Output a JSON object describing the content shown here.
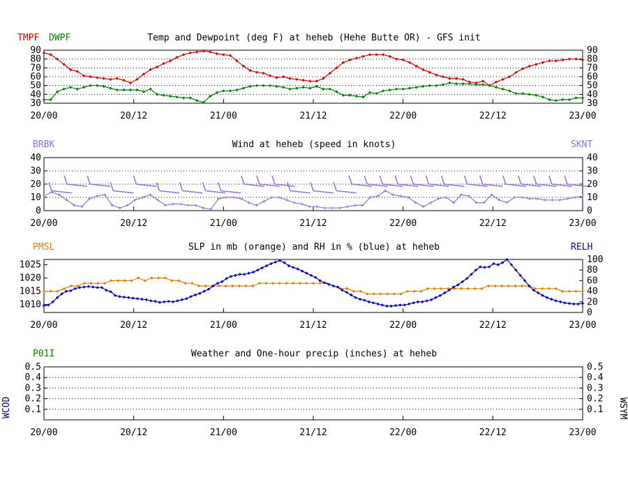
{
  "x_ticks": [
    "20/00",
    "20/12",
    "21/00",
    "21/12",
    "22/00",
    "22/12",
    "23/00"
  ],
  "colors": {
    "temp": "#e00000",
    "dew": "#008000",
    "wind": "#9370db",
    "pmsl": "#e08000",
    "relh": "#0000c8",
    "precip": "#008000",
    "wcod": "#000080"
  },
  "chart_data": [
    {
      "type": "line",
      "title": "Temp and Dewpoint (deg F) at heheb (Hehe Butte OR) - GFS init",
      "label_left_1": "TMPF",
      "label_left_2": "DWPF",
      "y_ticks": [
        "30",
        "40",
        "50",
        "60",
        "70",
        "80",
        "90"
      ],
      "ylim": [
        30,
        90
      ],
      "grid": true,
      "series": [
        {
          "name": "TMPF",
          "values": [
            87,
            85,
            80,
            74,
            68,
            66,
            61,
            60,
            59,
            58,
            57,
            58,
            56,
            53,
            57,
            63,
            68,
            71,
            75,
            78,
            82,
            85,
            87,
            88,
            89,
            88,
            86,
            85,
            84,
            78,
            72,
            67,
            65,
            64,
            61,
            59,
            60,
            58,
            57,
            56,
            55,
            55,
            58,
            64,
            70,
            76,
            79,
            81,
            83,
            85,
            85,
            85,
            83,
            80,
            79,
            76,
            72,
            68,
            65,
            62,
            60,
            58,
            58,
            57,
            54,
            53,
            55,
            50,
            54,
            57,
            60,
            65,
            69,
            72,
            74,
            76,
            78,
            78,
            79,
            80,
            80,
            79
          ]
        },
        {
          "name": "DWPF",
          "values": [
            34,
            34,
            43,
            46,
            48,
            46,
            48,
            50,
            50,
            49,
            47,
            45,
            45,
            45,
            45,
            43,
            46,
            40,
            39,
            38,
            37,
            36,
            36,
            33,
            31,
            38,
            42,
            44,
            44,
            45,
            47,
            49,
            50,
            50,
            50,
            49,
            48,
            46,
            47,
            48,
            47,
            49,
            46,
            46,
            43,
            39,
            39,
            38,
            37,
            42,
            41,
            44,
            45,
            46,
            46,
            47,
            48,
            49,
            50,
            50,
            51,
            53,
            52,
            52,
            52,
            51,
            51,
            50,
            48,
            46,
            44,
            41,
            41,
            40,
            39,
            37,
            34,
            33,
            34,
            34,
            36,
            36
          ]
        }
      ]
    },
    {
      "type": "line",
      "title": "Wind at  heheb (speed in knots)",
      "label_left": "BRBK",
      "label_right": "SKNT",
      "y_ticks": [
        "0",
        "10",
        "20",
        "30",
        "40"
      ],
      "ylim": [
        0,
        40
      ],
      "grid": true,
      "series": [
        {
          "name": "SKNT",
          "values": [
            11,
            14,
            12,
            8,
            4,
            3,
            9,
            11,
            12,
            4,
            2,
            4,
            8,
            10,
            12,
            8,
            4,
            5,
            5,
            4,
            4,
            2,
            1,
            9,
            10,
            10,
            9,
            6,
            4,
            7,
            10,
            10,
            8,
            6,
            5,
            3,
            3,
            2,
            2,
            2,
            3,
            4,
            4,
            10,
            11,
            15,
            12,
            11,
            10,
            6,
            3,
            6,
            9,
            10,
            6,
            12,
            11,
            6,
            6,
            12,
            8,
            6,
            10,
            10,
            9,
            9,
            8,
            8,
            8,
            9,
            10,
            11
          ]
        }
      ],
      "barbs": [
        {
          "x": 0.5,
          "s": 15
        },
        {
          "x": 1.5,
          "s": 20
        },
        {
          "x": 3,
          "s": 20
        },
        {
          "x": 4.5,
          "s": 15
        },
        {
          "x": 6,
          "s": 20
        },
        {
          "x": 7.5,
          "s": 15
        },
        {
          "x": 9,
          "s": 15
        },
        {
          "x": 10.5,
          "s": 15
        },
        {
          "x": 11.5,
          "s": 15
        },
        {
          "x": 13,
          "s": 20
        },
        {
          "x": 14,
          "s": 20
        },
        {
          "x": 15,
          "s": 20
        },
        {
          "x": 16,
          "s": 15
        },
        {
          "x": 17.5,
          "s": 15
        },
        {
          "x": 19,
          "s": 15
        },
        {
          "x": 20,
          "s": 20
        },
        {
          "x": 21,
          "s": 20
        },
        {
          "x": 22,
          "s": 20
        },
        {
          "x": 23,
          "s": 20
        },
        {
          "x": 24,
          "s": 20
        },
        {
          "x": 25,
          "s": 20
        },
        {
          "x": 26,
          "s": 20
        },
        {
          "x": 27.5,
          "s": 20
        },
        {
          "x": 28.5,
          "s": 20
        },
        {
          "x": 30,
          "s": 20
        },
        {
          "x": 31,
          "s": 20
        },
        {
          "x": 32,
          "s": 20
        },
        {
          "x": 33,
          "s": 20
        },
        {
          "x": 34,
          "s": 20
        }
      ]
    },
    {
      "type": "line",
      "title": "SLP in mb (orange) and RH in % (blue) at  heheb",
      "label_left": "PMSL",
      "label_right": "RELH",
      "y_ticks_left": [
        "1010",
        "1015",
        "1020",
        "1025"
      ],
      "ylim_left": [
        1007,
        1027
      ],
      "y_ticks_right": [
        "0",
        "20",
        "40",
        "60",
        "80",
        "100"
      ],
      "ylim_right": [
        0,
        100
      ],
      "series": [
        {
          "name": "PMSL",
          "axis": "left",
          "values": [
            1015,
            1015,
            1015,
            1016,
            1017,
            1017,
            1018,
            1018,
            1018,
            1018,
            1019,
            1019,
            1019,
            1019,
            1020,
            1019,
            1020,
            1020,
            1020,
            1019,
            1019,
            1018,
            1018,
            1017,
            1017,
            1017,
            1017,
            1017,
            1017,
            1017,
            1017,
            1017,
            1018,
            1018,
            1018,
            1018,
            1018,
            1018,
            1018,
            1018,
            1018,
            1018,
            1018,
            1017,
            1016,
            1016,
            1015,
            1015,
            1014,
            1014,
            1014,
            1014,
            1014,
            1014,
            1015,
            1015,
            1015,
            1016,
            1016,
            1016,
            1016,
            1016,
            1016,
            1016,
            1016,
            1016,
            1017,
            1017,
            1017,
            1017,
            1017,
            1017,
            1017,
            1016,
            1016,
            1016,
            1016,
            1015,
            1015,
            1015,
            1015
          ]
        },
        {
          "name": "RELH",
          "axis": "right",
          "values": [
            13,
            14,
            20,
            28,
            35,
            40,
            41,
            45,
            47,
            48,
            49,
            48,
            47,
            47,
            42,
            39,
            32,
            30,
            29,
            28,
            27,
            26,
            25,
            24,
            22,
            21,
            19,
            20,
            21,
            20,
            22,
            24,
            26,
            30,
            33,
            36,
            40,
            44,
            50,
            55,
            58,
            64,
            68,
            70,
            72,
            72,
            74,
            76,
            80,
            84,
            88,
            92,
            95,
            98,
            94,
            88,
            85,
            82,
            78,
            74,
            70,
            66,
            60,
            56,
            53,
            50,
            48,
            42,
            38,
            33,
            28,
            25,
            23,
            20,
            18,
            16,
            14,
            12,
            12,
            13,
            14,
            14,
            16,
            18,
            20,
            20,
            22,
            24,
            28,
            32,
            37,
            42,
            48,
            52,
            58,
            64,
            72,
            80,
            86,
            85,
            86,
            92,
            90,
            94,
            100,
            90,
            80,
            70,
            60,
            50,
            42,
            37,
            32,
            28,
            25,
            22,
            20,
            18,
            17,
            16,
            16,
            17
          ]
        }
      ]
    },
    {
      "type": "line",
      "title": "Weather and One-hour precip (inches) at  heheb",
      "label_left": "P01I",
      "label_side_left": "WCOD",
      "label_side_right": "WSYM",
      "y_ticks": [
        "0.1",
        "0.2",
        "0.3",
        "0.4",
        "0.5"
      ],
      "ylim": [
        0,
        0.5
      ],
      "grid": true,
      "series": []
    }
  ]
}
